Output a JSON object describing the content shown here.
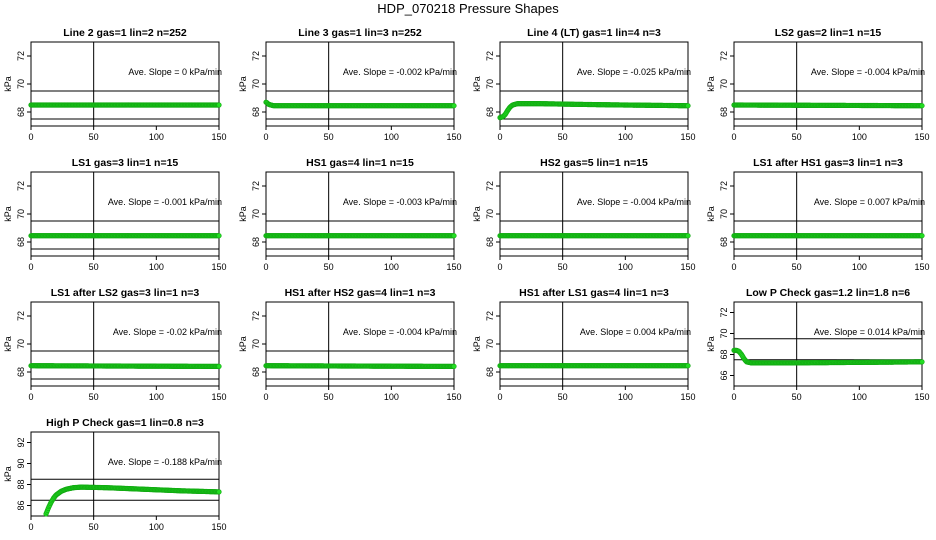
{
  "title": "HDP_070218  Pressure Shapes",
  "colors": {
    "points": "#22dd22",
    "pointStroke": "#11a811",
    "axis": "#000000"
  },
  "chart_data": [
    {
      "type": "scatter",
      "title": "Line 2 gas=1 lin=2 n=252",
      "ylabel": "kPa",
      "xlim": [
        0,
        150
      ],
      "ylim": [
        67,
        73
      ],
      "x_ticks": [
        0,
        50,
        100,
        150
      ],
      "y_ticks": [
        68,
        70,
        72
      ],
      "hlines": [
        69.5,
        67.5
      ],
      "vline": 50,
      "annotation": "Ave. Slope =  0  kPa/min",
      "series": [
        {
          "x": [
            0,
            150
          ],
          "y": [
            68.5,
            68.5
          ]
        }
      ]
    },
    {
      "type": "scatter",
      "title": "Line 3 gas=1 lin=3 n=252",
      "ylabel": "kPa",
      "xlim": [
        0,
        150
      ],
      "ylim": [
        67,
        73
      ],
      "x_ticks": [
        0,
        50,
        100,
        150
      ],
      "y_ticks": [
        68,
        70,
        72
      ],
      "hlines": [
        69.5,
        67.5
      ],
      "vline": 50,
      "annotation": "Ave. Slope =  -0.002  kPa/min",
      "series": [
        {
          "x": [
            0,
            1,
            2,
            4,
            6,
            150
          ],
          "y": [
            68.7,
            68.65,
            68.55,
            68.5,
            68.45,
            68.45
          ]
        }
      ]
    },
    {
      "type": "scatter",
      "title": "Line 4 (LT) gas=1 lin=4 n=3",
      "ylabel": "kPa",
      "xlim": [
        0,
        150
      ],
      "ylim": [
        67,
        73
      ],
      "x_ticks": [
        0,
        50,
        100,
        150
      ],
      "y_ticks": [
        68,
        70,
        72
      ],
      "hlines": [
        69.5,
        67.5
      ],
      "vline": 50,
      "annotation": "Ave. Slope =  -0.025  kPa/min",
      "series": [
        {
          "x": [
            0,
            2,
            4,
            6,
            8,
            10,
            14,
            20,
            30,
            60,
            100,
            150
          ],
          "y": [
            67.6,
            67.65,
            67.8,
            68.1,
            68.35,
            68.5,
            68.6,
            68.6,
            68.6,
            68.55,
            68.5,
            68.45
          ]
        }
      ]
    },
    {
      "type": "scatter",
      "title": "LS2 gas=2 lin=1 n=15",
      "ylabel": "kPa",
      "xlim": [
        0,
        150
      ],
      "ylim": [
        67,
        73
      ],
      "x_ticks": [
        0,
        50,
        100,
        150
      ],
      "y_ticks": [
        68,
        70,
        72
      ],
      "hlines": [
        69.5,
        67.5
      ],
      "vline": 50,
      "annotation": "Ave. Slope =  -0.004  kPa/min",
      "series": [
        {
          "x": [
            0,
            150
          ],
          "y": [
            68.5,
            68.45
          ]
        }
      ]
    },
    {
      "type": "scatter",
      "title": "LS1 gas=3 lin=1 n=15",
      "ylabel": "kPa",
      "xlim": [
        0,
        150
      ],
      "ylim": [
        67,
        73
      ],
      "x_ticks": [
        0,
        50,
        100,
        150
      ],
      "y_ticks": [
        68,
        70,
        72
      ],
      "hlines": [
        69.5,
        67.5
      ],
      "vline": 50,
      "annotation": "Ave. Slope =  -0.001  kPa/min",
      "series": [
        {
          "x": [
            0,
            150
          ],
          "y": [
            68.45,
            68.45
          ]
        }
      ]
    },
    {
      "type": "scatter",
      "title": "HS1 gas=4 lin=1 n=15",
      "ylabel": "kPa",
      "xlim": [
        0,
        150
      ],
      "ylim": [
        67,
        73
      ],
      "x_ticks": [
        0,
        50,
        100,
        150
      ],
      "y_ticks": [
        68,
        70,
        72
      ],
      "hlines": [
        69.5,
        67.5
      ],
      "vline": 50,
      "annotation": "Ave. Slope =  -0.003  kPa/min",
      "series": [
        {
          "x": [
            0,
            150
          ],
          "y": [
            68.45,
            68.45
          ]
        }
      ]
    },
    {
      "type": "scatter",
      "title": "HS2 gas=5 lin=1 n=15",
      "ylabel": "kPa",
      "xlim": [
        0,
        150
      ],
      "ylim": [
        67,
        73
      ],
      "x_ticks": [
        0,
        50,
        100,
        150
      ],
      "y_ticks": [
        68,
        70,
        72
      ],
      "hlines": [
        69.5,
        67.5
      ],
      "vline": 50,
      "annotation": "Ave. Slope =  -0.004  kPa/min",
      "series": [
        {
          "x": [
            0,
            150
          ],
          "y": [
            68.45,
            68.45
          ]
        }
      ]
    },
    {
      "type": "scatter",
      "title": "LS1 after HS1 gas=3 lin=1 n=3",
      "ylabel": "kPa",
      "xlim": [
        0,
        150
      ],
      "ylim": [
        67,
        73
      ],
      "x_ticks": [
        0,
        50,
        100,
        150
      ],
      "y_ticks": [
        68,
        70,
        72
      ],
      "hlines": [
        69.5,
        67.5
      ],
      "vline": 50,
      "annotation": "Ave. Slope =  0.007  kPa/min",
      "series": [
        {
          "x": [
            0,
            150
          ],
          "y": [
            68.45,
            68.45
          ]
        }
      ]
    },
    {
      "type": "scatter",
      "title": "LS1 after LS2 gas=3 lin=1 n=3",
      "ylabel": "kPa",
      "xlim": [
        0,
        150
      ],
      "ylim": [
        67,
        73
      ],
      "x_ticks": [
        0,
        50,
        100,
        150
      ],
      "y_ticks": [
        68,
        70,
        72
      ],
      "hlines": [
        69.5,
        67.5
      ],
      "vline": 50,
      "annotation": "Ave. Slope =  -0.02  kPa/min",
      "series": [
        {
          "x": [
            0,
            150
          ],
          "y": [
            68.45,
            68.4
          ]
        }
      ]
    },
    {
      "type": "scatter",
      "title": "HS1 after HS2 gas=4 lin=1 n=3",
      "ylabel": "kPa",
      "xlim": [
        0,
        150
      ],
      "ylim": [
        67,
        73
      ],
      "x_ticks": [
        0,
        50,
        100,
        150
      ],
      "y_ticks": [
        68,
        70,
        72
      ],
      "hlines": [
        69.5,
        67.5
      ],
      "vline": 50,
      "annotation": "Ave. Slope =  -0.004  kPa/min",
      "series": [
        {
          "x": [
            0,
            150
          ],
          "y": [
            68.45,
            68.4
          ]
        }
      ]
    },
    {
      "type": "scatter",
      "title": "HS1 after LS1 gas=4 lin=1 n=3",
      "ylabel": "kPa",
      "xlim": [
        0,
        150
      ],
      "ylim": [
        67,
        73
      ],
      "x_ticks": [
        0,
        50,
        100,
        150
      ],
      "y_ticks": [
        68,
        70,
        72
      ],
      "hlines": [
        69.5,
        67.5
      ],
      "vline": 50,
      "annotation": "Ave. Slope =  0.004  kPa/min",
      "series": [
        {
          "x": [
            0,
            150
          ],
          "y": [
            68.45,
            68.45
          ]
        }
      ]
    },
    {
      "type": "scatter",
      "title": "Low P Check gas=1.2 lin=1.8 n=6",
      "ylabel": "kPa",
      "xlim": [
        0,
        150
      ],
      "ylim": [
        65,
        73
      ],
      "x_ticks": [
        0,
        50,
        100,
        150
      ],
      "y_ticks": [
        66,
        68,
        70,
        72
      ],
      "hlines": [
        69.5,
        67.5
      ],
      "vline": 50,
      "annotation": "Ave. Slope =  0.014  kPa/min",
      "series": [
        {
          "x": [
            0,
            2,
            4,
            6,
            8,
            10,
            14,
            20,
            40,
            100,
            150
          ],
          "y": [
            68.4,
            68.4,
            68.3,
            68.0,
            67.6,
            67.3,
            67.2,
            67.2,
            67.2,
            67.25,
            67.3
          ]
        }
      ]
    },
    {
      "type": "scatter",
      "title": "High P Check gas=1 lin=0.8 n=3",
      "ylabel": "kPa",
      "xlim": [
        0,
        150
      ],
      "ylim": [
        85,
        93
      ],
      "x_ticks": [
        0,
        50,
        100,
        150
      ],
      "y_ticks": [
        86,
        88,
        90,
        92
      ],
      "hlines": [
        88.5,
        86.5
      ],
      "vline": 50,
      "annotation": "Ave. Slope =  -0.188  kPa/min",
      "series": [
        {
          "x": [
            12,
            14,
            16,
            18,
            20,
            24,
            28,
            34,
            40,
            60,
            80,
            100,
            120,
            150
          ],
          "y": [
            85.2,
            85.8,
            86.3,
            86.7,
            87.0,
            87.35,
            87.55,
            87.7,
            87.75,
            87.7,
            87.6,
            87.5,
            87.4,
            87.3
          ]
        }
      ]
    }
  ]
}
